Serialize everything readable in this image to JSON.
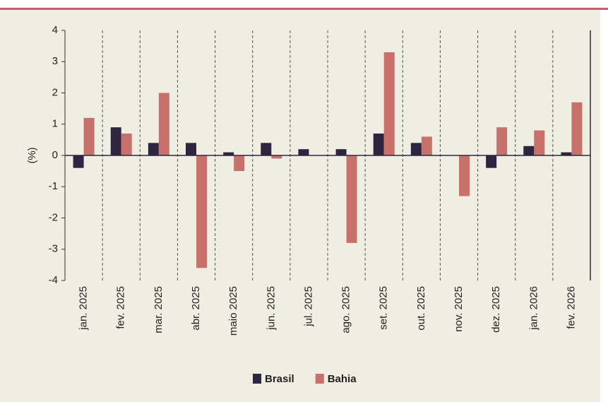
{
  "chart_data": {
    "type": "bar",
    "categories": [
      "jan. 2025",
      "fev. 2025",
      "mar. 2025",
      "abr. 2025",
      "maio 2025",
      "jun. 2025",
      "jul. 2025",
      "ago. 2025",
      "set. 2025",
      "out. 2025",
      "nov. 2025",
      "dez. 2025",
      "jan. 2026",
      "fev. 2026"
    ],
    "series": [
      {
        "name": "Brasil",
        "color": "#2e2540",
        "values": [
          -0.4,
          0.9,
          0.4,
          0.4,
          0.1,
          0.4,
          0.2,
          0.2,
          0.7,
          0.4,
          0,
          -0.4,
          0.3,
          0.1
        ]
      },
      {
        "name": "Bahia",
        "color": "#c8706a",
        "values": [
          1.2,
          0.7,
          2.0,
          -3.6,
          -0.5,
          -0.1,
          0,
          -2.8,
          3.3,
          0.6,
          -1.3,
          0.9,
          0.8,
          1.7
        ]
      }
    ],
    "y_label": "(%)",
    "ylim": [
      -4,
      4
    ],
    "yticks": [
      -4,
      -3,
      -2,
      -1,
      0,
      1,
      2,
      3,
      4
    ],
    "legend": "bottom"
  }
}
